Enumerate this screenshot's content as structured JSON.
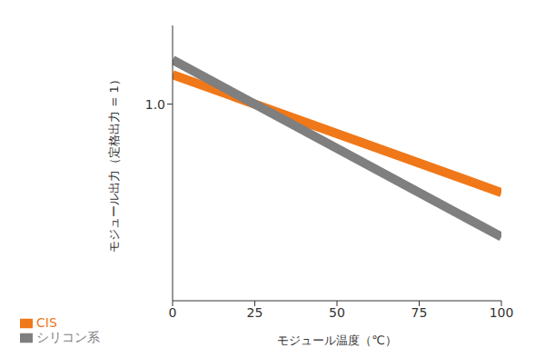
{
  "chart_data": {
    "type": "line",
    "x_label": "モジュール温度（℃）",
    "y_label": "モジュール出力（定格出力 = 1）",
    "x": [
      0,
      100
    ],
    "series": [
      {
        "name": "CIS",
        "color": "#f07818",
        "values": [
          1.075,
          0.775
        ]
      },
      {
        "name": "シリコン系",
        "color": "#7f7f7f",
        "values": [
          1.1125,
          0.6625
        ]
      }
    ],
    "xlim": [
      0,
      100
    ],
    "xticks": [
      0,
      25,
      50,
      75,
      100
    ],
    "ylim": [
      0.5,
      1.2
    ],
    "yticks": [
      {
        "value": 1,
        "label": "1.0"
      }
    ],
    "grid": false,
    "legend": "lower left"
  }
}
